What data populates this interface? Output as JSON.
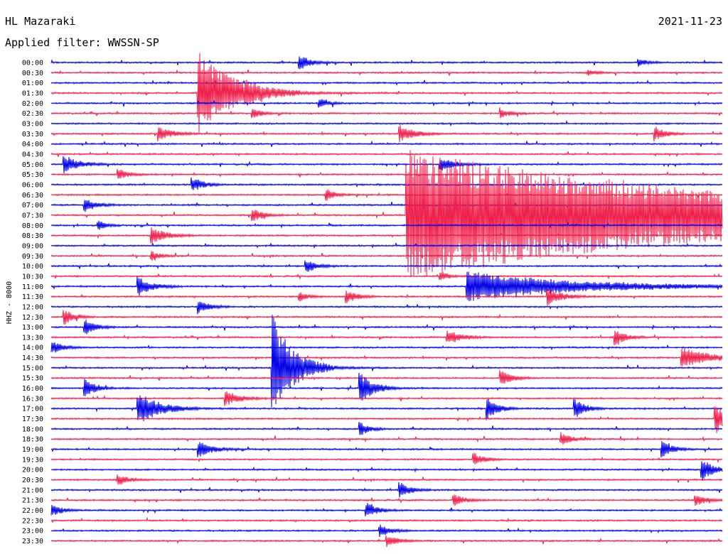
{
  "header": {
    "station": "HL Mazaraki",
    "date": "2021-11-23",
    "filter_label": "Applied filter: WWSSN-SP"
  },
  "chart_data": {
    "type": "line",
    "title": "HL Mazaraki",
    "date": "2021-11-23",
    "filter": "WWSSN-SP",
    "ylabel": "HHZ - 8000",
    "trace_minutes": 30,
    "tick_labels": [
      "00:00",
      "00:30",
      "01:00",
      "01:30",
      "02:00",
      "02:30",
      "03:00",
      "03:30",
      "04:00",
      "04:30",
      "05:00",
      "05:30",
      "06:00",
      "06:30",
      "07:00",
      "07:30",
      "08:00",
      "08:30",
      "09:00",
      "09:30",
      "10:00",
      "10:30",
      "11:00",
      "11:30",
      "12:00",
      "12:30",
      "13:00",
      "13:30",
      "14:00",
      "14:30",
      "15:00",
      "15:30",
      "16:00",
      "16:30",
      "17:00",
      "17:30",
      "18:00",
      "18:30",
      "19:00",
      "19:30",
      "20:00",
      "20:30",
      "21:00",
      "21:30",
      "22:00",
      "22:30",
      "23:00",
      "23:30"
    ],
    "colors": [
      "#0000e6",
      "#ee1e4a"
    ],
    "events": [
      {
        "row": 0,
        "at": 0.37,
        "amp": 1.0,
        "len": 0.015
      },
      {
        "row": 0,
        "at": 0.875,
        "amp": 0.5,
        "len": 0.012
      },
      {
        "row": 1,
        "at": 0.8,
        "amp": 0.4,
        "len": 0.012
      },
      {
        "row": 3,
        "at": 0.22,
        "amp": 5.5,
        "len": 0.05
      },
      {
        "row": 3,
        "at": 0.29,
        "amp": 0.6,
        "len": 0.012
      },
      {
        "row": 4,
        "at": 0.4,
        "amp": 0.6,
        "len": 0.012
      },
      {
        "row": 5,
        "at": 0.3,
        "amp": 0.7,
        "len": 0.012
      },
      {
        "row": 5,
        "at": 0.67,
        "amp": 0.6,
        "len": 0.012
      },
      {
        "row": 7,
        "at": 0.16,
        "amp": 0.9,
        "len": 0.02
      },
      {
        "row": 7,
        "at": 0.52,
        "amp": 1.1,
        "len": 0.02
      },
      {
        "row": 7,
        "at": 0.9,
        "amp": 0.9,
        "len": 0.015
      },
      {
        "row": 10,
        "at": 0.02,
        "amp": 1.2,
        "len": 0.02
      },
      {
        "row": 10,
        "at": 0.58,
        "amp": 0.9,
        "len": 0.02
      },
      {
        "row": 11,
        "at": 0.1,
        "amp": 0.7,
        "len": 0.015
      },
      {
        "row": 12,
        "at": 0.21,
        "amp": 1.0,
        "len": 0.015
      },
      {
        "row": 13,
        "at": 0.41,
        "amp": 0.8,
        "len": 0.012
      },
      {
        "row": 14,
        "at": 0.05,
        "amp": 1.0,
        "len": 0.015
      },
      {
        "row": 15,
        "at": 0.3,
        "amp": 0.9,
        "len": 0.015
      },
      {
        "row": 15,
        "at": 0.53,
        "amp": 8.5,
        "len": 0.5
      },
      {
        "row": 16,
        "at": 0.07,
        "amp": 0.6,
        "len": 0.012
      },
      {
        "row": 17,
        "at": 0.15,
        "amp": 1.2,
        "len": 0.02
      },
      {
        "row": 19,
        "at": 0.15,
        "amp": 0.6,
        "len": 0.012
      },
      {
        "row": 20,
        "at": 0.38,
        "amp": 0.9,
        "len": 0.015
      },
      {
        "row": 21,
        "at": 0.58,
        "amp": 0.6,
        "len": 0.012
      },
      {
        "row": 22,
        "at": 0.13,
        "amp": 1.2,
        "len": 0.02
      },
      {
        "row": 22,
        "at": 0.62,
        "amp": 2.0,
        "len": 0.15
      },
      {
        "row": 23,
        "at": 0.37,
        "amp": 0.6,
        "len": 0.012
      },
      {
        "row": 23,
        "at": 0.44,
        "amp": 0.9,
        "len": 0.015
      },
      {
        "row": 23,
        "at": 0.74,
        "amp": 1.2,
        "len": 0.02
      },
      {
        "row": 24,
        "at": 0.22,
        "amp": 0.9,
        "len": 0.015
      },
      {
        "row": 25,
        "at": 0.02,
        "amp": 1.0,
        "len": 0.015
      },
      {
        "row": 26,
        "at": 0.05,
        "amp": 1.0,
        "len": 0.015
      },
      {
        "row": 27,
        "at": 0.59,
        "amp": 1.0,
        "len": 0.02
      },
      {
        "row": 27,
        "at": 0.84,
        "amp": 1.0,
        "len": 0.015
      },
      {
        "row": 28,
        "at": 0.0,
        "amp": 1.0,
        "len": 0.015
      },
      {
        "row": 29,
        "at": 0.94,
        "amp": 1.3,
        "len": 0.04
      },
      {
        "row": 30,
        "at": 0.33,
        "amp": 7.0,
        "len": 0.03
      },
      {
        "row": 31,
        "at": 0.67,
        "amp": 1.0,
        "len": 0.015
      },
      {
        "row": 32,
        "at": 0.05,
        "amp": 1.2,
        "len": 0.015
      },
      {
        "row": 32,
        "at": 0.46,
        "amp": 2.0,
        "len": 0.02
      },
      {
        "row": 33,
        "at": 0.26,
        "amp": 1.0,
        "len": 0.02
      },
      {
        "row": 34,
        "at": 0.13,
        "amp": 2.2,
        "len": 0.03
      },
      {
        "row": 34,
        "at": 0.65,
        "amp": 1.5,
        "len": 0.015
      },
      {
        "row": 34,
        "at": 0.78,
        "amp": 1.3,
        "len": 0.015
      },
      {
        "row": 35,
        "at": 0.99,
        "amp": 2.0,
        "len": 0.015
      },
      {
        "row": 36,
        "at": 0.46,
        "amp": 1.0,
        "len": 0.012
      },
      {
        "row": 37,
        "at": 0.76,
        "amp": 0.8,
        "len": 0.015
      },
      {
        "row": 38,
        "at": 0.22,
        "amp": 1.0,
        "len": 0.02
      },
      {
        "row": 38,
        "at": 0.91,
        "amp": 1.0,
        "len": 0.015
      },
      {
        "row": 39,
        "at": 0.63,
        "amp": 0.8,
        "len": 0.015
      },
      {
        "row": 40,
        "at": 0.97,
        "amp": 1.5,
        "len": 0.015
      },
      {
        "row": 41,
        "at": 0.1,
        "amp": 0.7,
        "len": 0.015
      },
      {
        "row": 42,
        "at": 0.52,
        "amp": 1.0,
        "len": 0.015
      },
      {
        "row": 43,
        "at": 0.6,
        "amp": 0.8,
        "len": 0.015
      },
      {
        "row": 43,
        "at": 0.96,
        "amp": 0.8,
        "len": 0.015
      },
      {
        "row": 44,
        "at": 0.0,
        "amp": 0.8,
        "len": 0.015
      },
      {
        "row": 44,
        "at": 0.47,
        "amp": 1.0,
        "len": 0.015
      },
      {
        "row": 46,
        "at": 0.49,
        "amp": 0.8,
        "len": 0.015
      },
      {
        "row": 47,
        "at": 0.5,
        "amp": 0.8,
        "len": 0.015
      }
    ]
  }
}
